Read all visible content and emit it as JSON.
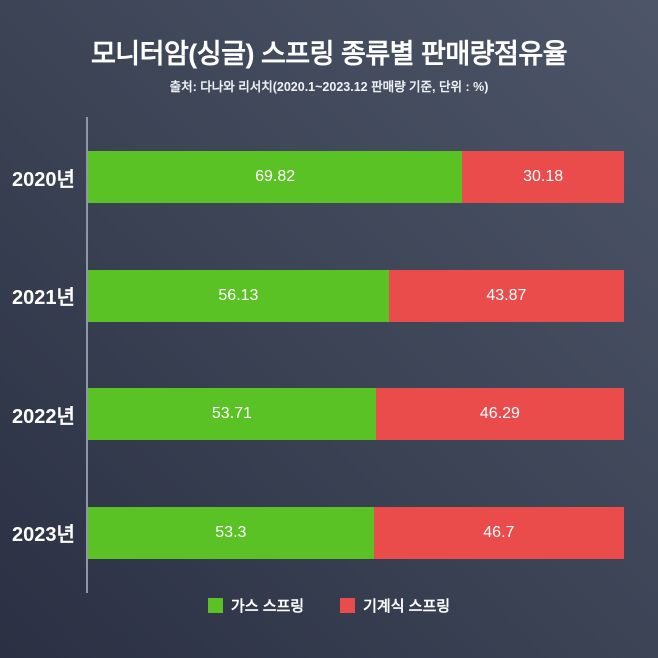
{
  "chart_data": {
    "type": "bar",
    "orientation": "horizontal-stacked",
    "title": "모니터암(싱글) 스프링 종류별 판매량점유율",
    "subtitle": "출처: 다나와 리서치(2020.1~2023.12 판매량 기준, 단위 : %)",
    "categories": [
      "2020년",
      "2021년",
      "2022년",
      "2023년"
    ],
    "series": [
      {
        "key": "gas-spring",
        "name": "가스 스프링",
        "color": "#5bc226",
        "values": [
          69.82,
          56.13,
          53.71,
          53.3
        ]
      },
      {
        "key": "mechanical-spring",
        "name": "기계식 스프링",
        "color": "#ea4b4b",
        "values": [
          30.18,
          43.87,
          46.29,
          46.7
        ]
      }
    ],
    "xlim": [
      0,
      100
    ],
    "legend_position": "bottom",
    "grid": false
  },
  "colors": {
    "background_light": "#4d5668",
    "background_mid": "#3a4254",
    "background_dark": "#2b3043",
    "axis_line": "#8f96a6",
    "text": "#ffffff"
  }
}
